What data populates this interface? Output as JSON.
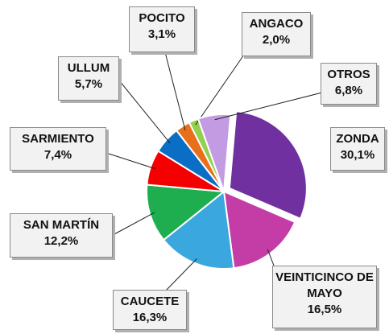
{
  "chart_data": {
    "type": "pie",
    "categories": [
      "ZONDA",
      "VEINTICINCO DE MAYO",
      "CAUCETE",
      "SAN MARTÍN",
      "SARMIENTO",
      "ULLUM",
      "POCITO",
      "ANGACO",
      "OTROS"
    ],
    "values": [
      30.1,
      16.5,
      16.3,
      12.2,
      7.4,
      5.7,
      3.1,
      2.0,
      6.8
    ],
    "value_labels": [
      "30,1%",
      "16,5%",
      "16,3%",
      "12,2%",
      "7,4%",
      "5,7%",
      "3,1%",
      "2,0%",
      "6,8%"
    ],
    "colors": [
      "#7030a0",
      "#c43da6",
      "#3aa7df",
      "#1fae4f",
      "#f40000",
      "#0a6fc4",
      "#e8701c",
      "#92d050",
      "#c39be3"
    ]
  }
}
